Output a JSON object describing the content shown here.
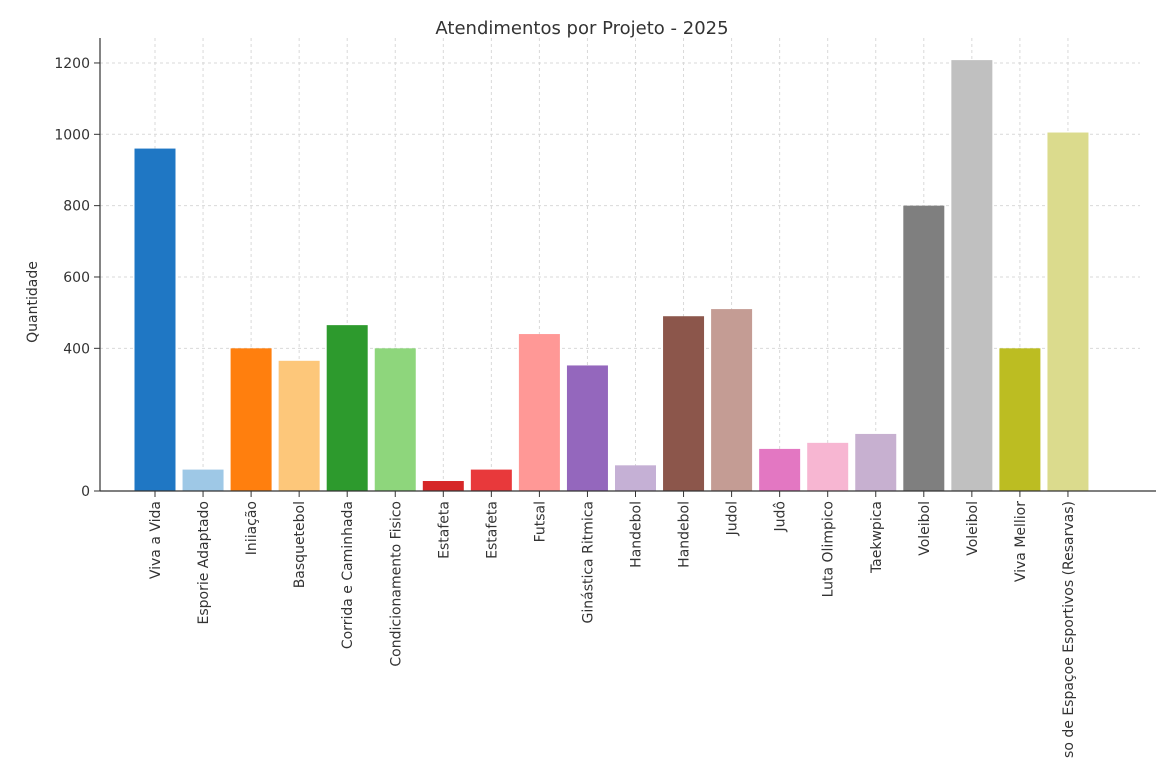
{
  "chart_data": {
    "type": "bar",
    "title": "Atendimentos por Projeto - 2025",
    "xlabel": "",
    "ylabel": "Quantidade",
    "ylim": [
      0,
      1270
    ],
    "yticks": [
      0,
      400,
      600,
      800,
      1000,
      1200
    ],
    "grid": true,
    "categories": [
      "Viva a Vida",
      "Esporie Adaptado",
      "Iniiação",
      "Basquetebol",
      "Corrida e Caminhada",
      "Condicionamento Fisico",
      "Estafeta",
      "Estafeta",
      "Futsal",
      "Ginástica Ritmica",
      "Handebol",
      "Handebol",
      "Judol",
      "Judô",
      "Luta Olimpico",
      "Taekwpica",
      "Voleibol",
      "Voleibol",
      "Viva Mellior",
      "so de Espaçoe Esportivos (Resarvas)"
    ],
    "values": [
      960,
      60,
      400,
      365,
      465,
      400,
      28,
      60,
      440,
      352,
      72,
      490,
      510,
      118,
      135,
      160,
      800,
      1208,
      400,
      1005
    ],
    "colors": [
      "#1f77c4",
      "#9ec8e6",
      "#ff7f0e",
      "#fdc77a",
      "#2d9a2d",
      "#8ed67c",
      "#d62728",
      "#e8393b",
      "#ff9896",
      "#9467bd",
      "#c5b0d5",
      "#8c564b",
      "#c49c94",
      "#e377c2",
      "#f7b6d2",
      "#c7b0d0",
      "#7f7f7f",
      "#c0c0c0",
      "#bcbd22",
      "#dbdb8d"
    ]
  }
}
